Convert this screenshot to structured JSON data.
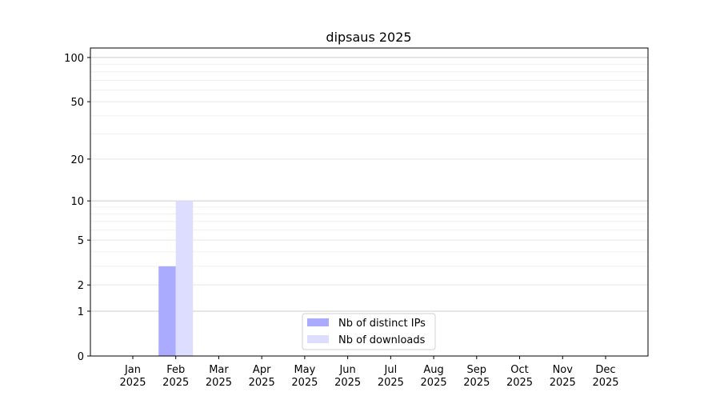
{
  "chart_data": {
    "type": "bar",
    "title": "dipsaus 2025",
    "xlabel": "",
    "ylabel": "",
    "yscale": "log1p",
    "ylim": [
      0,
      116
    ],
    "yticks": [
      0,
      1,
      2,
      5,
      10,
      20,
      50,
      100
    ],
    "grid": true,
    "legend_position": "bottom-center",
    "categories": [
      "Jan\n2025",
      "Feb\n2025",
      "Mar\n2025",
      "Apr\n2025",
      "May\n2025",
      "Jun\n2025",
      "Jul\n2025",
      "Aug\n2025",
      "Sep\n2025",
      "Oct\n2025",
      "Nov\n2025",
      "Dec\n2025"
    ],
    "series": [
      {
        "name": "Nb of distinct IPs",
        "color": "#aaaaff",
        "values": [
          0,
          3,
          0,
          0,
          0,
          0,
          0,
          0,
          0,
          0,
          0,
          0
        ]
      },
      {
        "name": "Nb of downloads",
        "color": "#ddddff",
        "values": [
          0,
          10,
          0,
          0,
          0,
          0,
          0,
          0,
          0,
          0,
          0,
          0
        ]
      }
    ]
  }
}
